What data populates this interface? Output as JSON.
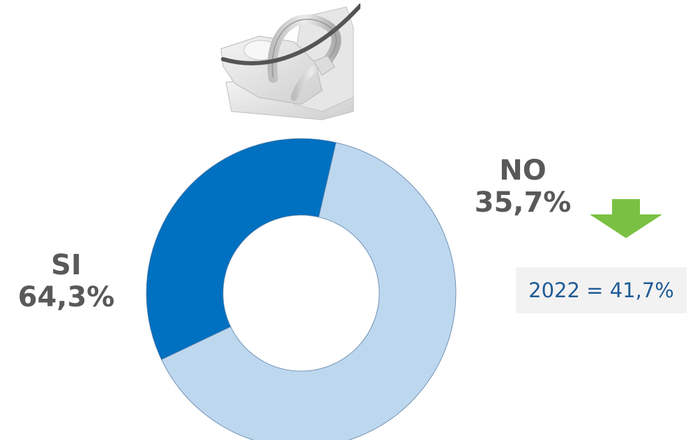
{
  "chart_data": {
    "type": "pie",
    "variant": "donut",
    "categories": [
      "NO",
      "SI"
    ],
    "values": [
      35.7,
      64.3
    ],
    "value_labels": [
      "35,7%",
      "64,3%"
    ],
    "colors": [
      "#0070c0",
      "#bdd7ee"
    ]
  },
  "labels": {
    "no_category": "NO",
    "no_value": "35,7%",
    "si_category": "SI",
    "si_value": "64,3%"
  },
  "note": {
    "text": "2022 = 41,7%",
    "trend": "down",
    "trend_color": "#7ac143"
  },
  "icons": {
    "top_illustration": "child-car-seat-icon",
    "trend_arrow": "down-arrow-icon"
  }
}
